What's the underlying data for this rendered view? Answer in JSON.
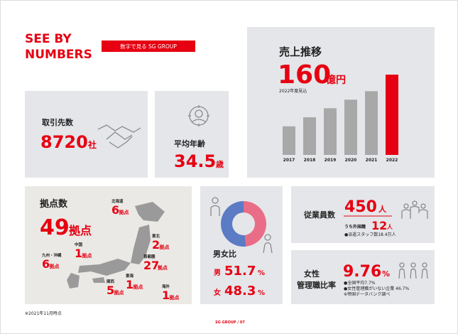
{
  "header": {
    "title_line1": "SEE BY",
    "title_line2": "NUMBERS",
    "badge": "数字で見る SG GROUP"
  },
  "revenue": {
    "label": "売上推移",
    "unit": "億円",
    "note": "2022年度見込",
    "categories": [
      "2017",
      "2018",
      "2019",
      "2020",
      "2021",
      "2022"
    ],
    "values": [
      57,
      75,
      93,
      110,
      127,
      160
    ],
    "bar_color": "#a8a8a8",
    "highlight_color": "#e60012"
  },
  "clients": {
    "label": "取引先数",
    "value": 8720,
    "unit": "社"
  },
  "age": {
    "label": "平均年齢",
    "value": 34.5,
    "unit": "歳"
  },
  "bases": {
    "label": "拠点数",
    "value": 49,
    "unit": "拠点",
    "regions": [
      {
        "name": "北海道",
        "value": 6,
        "unit": "拠点"
      },
      {
        "name": "東北",
        "value": 2,
        "unit": "拠点"
      },
      {
        "name": "首都圏",
        "value": 27,
        "unit": "拠点"
      },
      {
        "name": "東海",
        "value": 1,
        "unit": "拠点"
      },
      {
        "name": "関西",
        "value": 5,
        "unit": "拠点"
      },
      {
        "name": "中国",
        "value": 1,
        "unit": "拠点"
      },
      {
        "name": "九州・沖縄",
        "value": 6,
        "unit": "拠点"
      },
      {
        "name": "海外",
        "value": 1,
        "unit": "拠点"
      }
    ]
  },
  "gender": {
    "label": "男女比",
    "unit": "%",
    "series": [
      {
        "name": "男",
        "value": 51.7,
        "color": "#5b7bc4"
      },
      {
        "name": "女",
        "value": 48.3,
        "color": "#ea6d87"
      }
    ]
  },
  "employees": {
    "label": "従業員数",
    "value": 450,
    "unit": "人",
    "sub_label": "うち外国籍",
    "sub_value": 12,
    "sub_unit": "人",
    "note": "●派遣スタッフ数18.4万人"
  },
  "women_mgmt": {
    "label_line1": "女性",
    "label_line2": "管理職比率",
    "value": 9.76,
    "unit": "%",
    "notes": [
      "●全国平均7.7%",
      "●女性管理職がいない企業 46.7%",
      "※帝国データバンク調べ"
    ]
  },
  "footer": {
    "note": "※2021年11月時点",
    "page": "SG GROUP / 07"
  }
}
